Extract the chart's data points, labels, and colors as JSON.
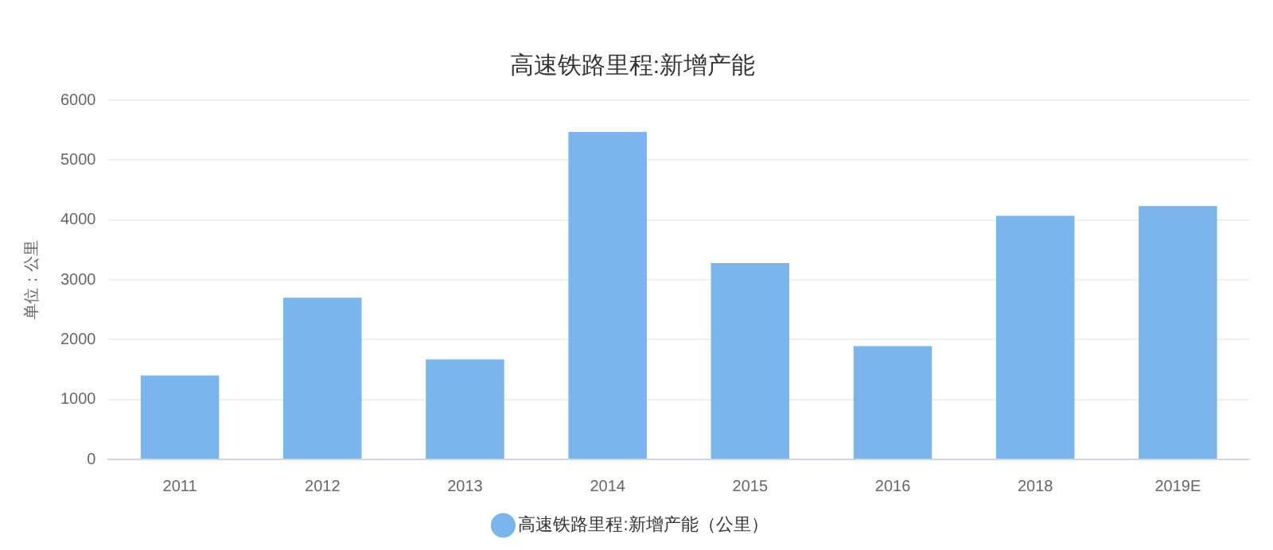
{
  "chart_data": {
    "type": "bar",
    "title": "高速铁路里程:新增产能",
    "ylabel": "单位：公里",
    "categories": [
      "2011",
      "2012",
      "2013",
      "2014",
      "2015",
      "2016",
      "2018",
      "2019E"
    ],
    "series": [
      {
        "name": "高速铁路里程:新增产能（公里）",
        "color": "#7cb5ec",
        "values": [
          1400,
          2700,
          1670,
          5470,
          3280,
          1890,
          4070,
          4230
        ]
      }
    ],
    "ylim": [
      0,
      6000
    ],
    "yticks": [
      0,
      1000,
      2000,
      3000,
      4000,
      5000,
      6000
    ],
    "grid": "y",
    "legend": "bottom"
  }
}
